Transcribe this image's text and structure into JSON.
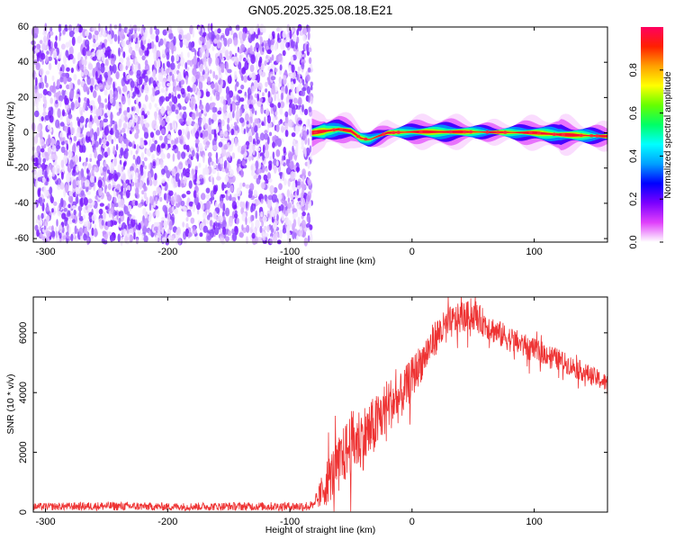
{
  "title": "GN05.2025.325.08.18.E21",
  "colors": {
    "snr_line": "#ee3333",
    "noise_dots": "#8a2be2",
    "axis": "#000000"
  },
  "colorbar": {
    "label": "Normalized spectral amplitude",
    "ticks": [
      "0.0",
      "0.2",
      "0.4",
      "0.6",
      "0.8"
    ],
    "tick_values": [
      0.0,
      0.2,
      0.4,
      0.6,
      0.8
    ],
    "range": [
      0,
      1
    ],
    "colormap": [
      "#ffffff",
      "#e040fb",
      "#7b00ff",
      "#0000ff",
      "#00a0ff",
      "#00ffff",
      "#00ff66",
      "#66ff00",
      "#ffff00",
      "#ffa000",
      "#ff2000",
      "#ff0060"
    ]
  },
  "chart_data": [
    {
      "type": "heatmap",
      "title": "GN05.2025.325.08.18.E21",
      "xlabel": "Height of straight line (km)",
      "ylabel": "Frequency (Hz)",
      "xlim": [
        -310,
        160
      ],
      "ylim": [
        -62,
        60
      ],
      "xticks": [
        -300,
        -200,
        -100,
        0,
        100
      ],
      "xtick_labels": [
        "-300",
        "-200",
        "-100",
        "0",
        "100"
      ],
      "yticks": [
        -60,
        -40,
        -20,
        0,
        20,
        40,
        60
      ],
      "ytick_labels": [
        "-60",
        "-40",
        "-20",
        "0",
        "20",
        "40",
        "60"
      ],
      "noise_region_x": [
        -310,
        -82
      ],
      "noise_amplitude_range": [
        0.0,
        0.2
      ],
      "signal_region_x": [
        -82,
        160
      ],
      "signal_centerline": [
        {
          "x": -82,
          "y": 0
        },
        {
          "x": -60,
          "y": 2
        },
        {
          "x": -50,
          "y": 1
        },
        {
          "x": -42,
          "y": -3
        },
        {
          "x": -35,
          "y": -4
        },
        {
          "x": -28,
          "y": -2
        },
        {
          "x": -20,
          "y": 0
        },
        {
          "x": 0,
          "y": 0.5
        },
        {
          "x": 50,
          "y": 0.5
        },
        {
          "x": 100,
          "y": 0
        },
        {
          "x": 120,
          "y": -1
        },
        {
          "x": 160,
          "y": -2
        }
      ],
      "signal_peak_amplitude": 0.95
    },
    {
      "type": "line",
      "xlabel": "Height of straight line (km)",
      "ylabel": "SNR (10 * v/v)",
      "xlim": [
        -310,
        160
      ],
      "ylim": [
        0,
        7200
      ],
      "xticks": [
        -300,
        -200,
        -100,
        0,
        100
      ],
      "xtick_labels": [
        "-300",
        "-200",
        "-100",
        "0",
        "100"
      ],
      "yticks": [
        0,
        2000,
        4000,
        6000
      ],
      "ytick_labels": [
        "0",
        "2000",
        "4000",
        "6000"
      ],
      "series": [
        {
          "x": [
            -310,
            -250,
            -200,
            -150,
            -100,
            -80,
            -70,
            -60,
            -50,
            -40,
            -30,
            -20,
            -10,
            0,
            10,
            20,
            30,
            40,
            50,
            60,
            70,
            80,
            90,
            100,
            110,
            120,
            130,
            140,
            150,
            160
          ],
          "y": [
            180,
            200,
            180,
            190,
            190,
            200,
            1000,
            1600,
            2300,
            2500,
            2900,
            3600,
            3800,
            4500,
            5200,
            5900,
            6300,
            6500,
            6600,
            6300,
            6000,
            5800,
            5600,
            5400,
            5300,
            5100,
            4900,
            4700,
            4500,
            4300
          ],
          "noise_amplitude": [
            120,
            150,
            130,
            140,
            150,
            180,
            800,
            900,
            1100,
            1100,
            1000,
            900,
            800,
            700,
            650,
            600,
            550,
            520,
            500,
            480,
            450,
            430,
            420,
            400,
            380,
            360,
            340,
            330,
            320,
            300
          ]
        }
      ]
    }
  ]
}
